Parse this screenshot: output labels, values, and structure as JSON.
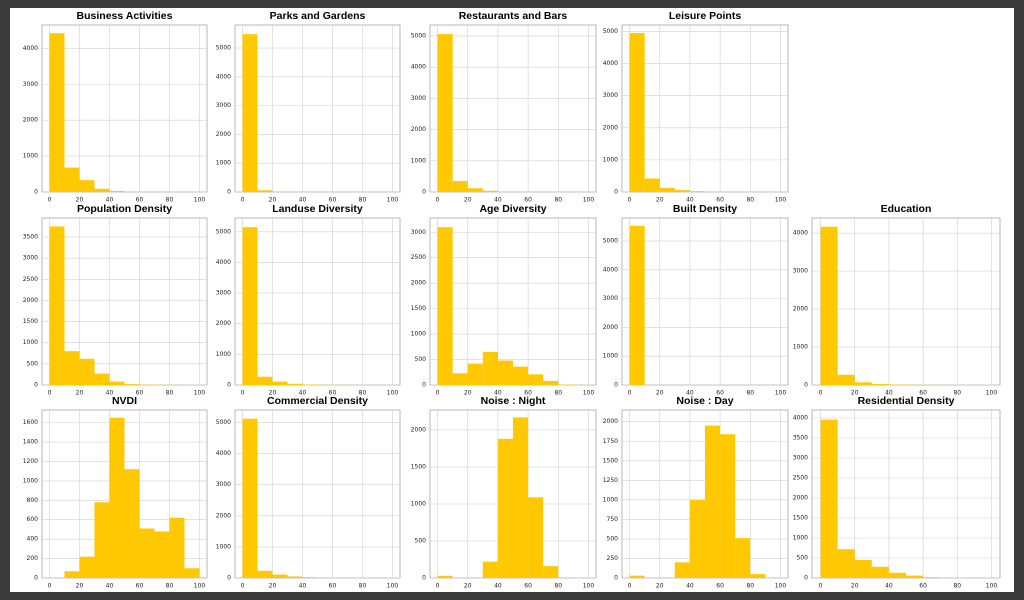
{
  "chart_data": [
    {
      "type": "histogram",
      "title": "Business Activities",
      "bins": [
        0,
        10,
        20,
        30,
        40,
        50,
        60,
        70,
        80,
        90,
        100
      ],
      "values": [
        4420,
        680,
        330,
        90,
        30,
        10,
        5,
        2,
        1,
        1
      ],
      "color": "#ffc800",
      "xlim": [
        -5,
        105
      ],
      "xticks": [
        0,
        20,
        40,
        60,
        80,
        100
      ],
      "ylim": [
        0,
        4650
      ],
      "yticks": [
        0,
        1000,
        2000,
        3000,
        4000
      ],
      "grid": true
    },
    {
      "type": "histogram",
      "title": "Parks and Gardens",
      "bins": [
        0,
        10,
        20,
        30,
        40,
        50,
        60,
        70,
        80,
        90,
        100
      ],
      "values": [
        5480,
        60,
        20,
        10,
        5,
        3,
        2,
        1,
        1,
        1
      ],
      "color": "#ffc800",
      "xlim": [
        -5,
        105
      ],
      "xticks": [
        0,
        20,
        40,
        60,
        80,
        100
      ],
      "ylim": [
        0,
        5800
      ],
      "yticks": [
        0,
        1000,
        2000,
        3000,
        4000,
        5000
      ],
      "grid": true
    },
    {
      "type": "histogram",
      "title": "Restaurants and Bars",
      "bins": [
        0,
        10,
        20,
        30,
        40,
        50,
        60,
        70,
        80,
        90,
        100
      ],
      "values": [
        5060,
        350,
        120,
        40,
        15,
        5,
        3,
        2,
        1,
        1
      ],
      "color": "#ffc800",
      "xlim": [
        -5,
        105
      ],
      "xticks": [
        0,
        20,
        40,
        60,
        80,
        100
      ],
      "ylim": [
        0,
        5350
      ],
      "yticks": [
        0,
        1000,
        2000,
        3000,
        4000,
        5000
      ],
      "grid": true
    },
    {
      "type": "histogram",
      "title": "Leisure Points",
      "bins": [
        0,
        10,
        20,
        30,
        40,
        50,
        60,
        70,
        80,
        90,
        100
      ],
      "values": [
        4950,
        420,
        130,
        60,
        25,
        10,
        5,
        2,
        1,
        1
      ],
      "color": "#ffc800",
      "xlim": [
        -5,
        105
      ],
      "xticks": [
        0,
        20,
        40,
        60,
        80,
        100
      ],
      "ylim": [
        0,
        5200
      ],
      "yticks": [
        0,
        1000,
        2000,
        3000,
        4000,
        5000
      ],
      "grid": true
    },
    {
      "type": "histogram",
      "title": "Population Density",
      "bins": [
        0,
        10,
        20,
        30,
        40,
        50,
        60,
        70,
        80,
        90,
        100
      ],
      "values": [
        3750,
        800,
        620,
        270,
        80,
        20,
        8,
        3,
        2,
        1
      ],
      "color": "#ffc800",
      "xlim": [
        -5,
        105
      ],
      "xticks": [
        0,
        20,
        40,
        60,
        80,
        100
      ],
      "ylim": [
        0,
        3950
      ],
      "yticks": [
        0,
        500,
        1000,
        1500,
        2000,
        2500,
        3000,
        3500
      ],
      "grid": true
    },
    {
      "type": "histogram",
      "title": "Landuse Diversity",
      "bins": [
        0,
        10,
        20,
        30,
        40,
        50,
        60,
        70,
        80,
        90,
        100
      ],
      "values": [
        5150,
        270,
        110,
        40,
        15,
        5,
        3,
        2,
        1,
        1
      ],
      "color": "#ffc800",
      "xlim": [
        -5,
        105
      ],
      "xticks": [
        0,
        20,
        40,
        60,
        80,
        100
      ],
      "ylim": [
        0,
        5450
      ],
      "yticks": [
        0,
        1000,
        2000,
        3000,
        4000,
        5000
      ],
      "grid": true
    },
    {
      "type": "histogram",
      "title": "Age Diversity",
      "bins": [
        0,
        10,
        20,
        30,
        40,
        50,
        60,
        70,
        80,
        90,
        100
      ],
      "values": [
        3100,
        230,
        420,
        650,
        480,
        360,
        210,
        80,
        10,
        2
      ],
      "color": "#ffc800",
      "xlim": [
        -5,
        105
      ],
      "xticks": [
        0,
        20,
        40,
        60,
        80,
        100
      ],
      "ylim": [
        0,
        3280
      ],
      "yticks": [
        0,
        500,
        1000,
        1500,
        2000,
        2500,
        3000
      ],
      "grid": true
    },
    {
      "type": "histogram",
      "title": "Built Density",
      "bins": [
        0,
        10,
        20,
        30,
        40,
        50,
        60,
        70,
        80,
        90,
        100
      ],
      "values": [
        5530,
        0,
        0,
        0,
        0,
        0,
        0,
        0,
        0,
        0
      ],
      "color": "#ffc800",
      "xlim": [
        -5,
        105
      ],
      "xticks": [
        0,
        20,
        40,
        60,
        80,
        100
      ],
      "ylim": [
        0,
        5800
      ],
      "yticks": [
        0,
        1000,
        2000,
        3000,
        4000,
        5000
      ],
      "grid": true
    },
    {
      "type": "histogram",
      "title": "Education",
      "bins": [
        0,
        10,
        20,
        30,
        40,
        50,
        60,
        70,
        80,
        90,
        100
      ],
      "values": [
        4170,
        270,
        70,
        25,
        10,
        5,
        2,
        1,
        1,
        0
      ],
      "color": "#ffc800",
      "xlim": [
        -5,
        105
      ],
      "xticks": [
        0,
        20,
        40,
        60,
        80,
        100
      ],
      "ylim": [
        0,
        4400
      ],
      "yticks": [
        0,
        1000,
        2000,
        3000,
        4000
      ],
      "grid": true
    },
    {
      "type": "histogram",
      "title": "NVDI",
      "bins": [
        0,
        10,
        20,
        30,
        40,
        50,
        60,
        70,
        80,
        90,
        100
      ],
      "values": [
        5,
        70,
        220,
        780,
        1650,
        1120,
        510,
        480,
        620,
        100
      ],
      "color": "#ffc800",
      "xlim": [
        -5,
        105
      ],
      "xticks": [
        0,
        20,
        40,
        60,
        80,
        100
      ],
      "ylim": [
        0,
        1730
      ],
      "yticks": [
        0,
        200,
        400,
        600,
        800,
        1000,
        1200,
        1400,
        1600
      ],
      "grid": true
    },
    {
      "type": "histogram",
      "title": "Commercial Density",
      "bins": [
        0,
        10,
        20,
        30,
        40,
        50,
        60,
        70,
        80,
        90,
        100
      ],
      "values": [
        5120,
        230,
        110,
        50,
        25,
        10,
        5,
        2,
        1,
        1
      ],
      "color": "#ffc800",
      "xlim": [
        -5,
        105
      ],
      "xticks": [
        0,
        20,
        40,
        60,
        80,
        100
      ],
      "ylim": [
        0,
        5400
      ],
      "yticks": [
        0,
        1000,
        2000,
        3000,
        4000,
        5000
      ],
      "grid": true
    },
    {
      "type": "histogram",
      "title": "Noise : Night",
      "bins": [
        0,
        10,
        20,
        30,
        40,
        50,
        60,
        70,
        80,
        90,
        100
      ],
      "values": [
        30,
        5,
        0,
        220,
        1880,
        2170,
        1090,
        160,
        5,
        0
      ],
      "color": "#ffc800",
      "xlim": [
        -5,
        105
      ],
      "xticks": [
        0,
        20,
        40,
        60,
        80,
        100
      ],
      "ylim": [
        0,
        2270
      ],
      "yticks": [
        0,
        500,
        1000,
        1500,
        2000
      ],
      "grid": true
    },
    {
      "type": "histogram",
      "title": "Noise : Day",
      "bins": [
        0,
        10,
        20,
        30,
        40,
        50,
        60,
        70,
        80,
        90,
        100
      ],
      "values": [
        30,
        5,
        0,
        200,
        1000,
        1950,
        1840,
        510,
        50,
        5
      ],
      "color": "#ffc800",
      "xlim": [
        -5,
        105
      ],
      "xticks": [
        0,
        20,
        40,
        60,
        80,
        100
      ],
      "ylim": [
        0,
        2150
      ],
      "yticks": [
        0,
        250,
        500,
        750,
        1000,
        1250,
        1500,
        1750,
        2000
      ],
      "grid": true
    },
    {
      "type": "histogram",
      "title": "Residential Density",
      "bins": [
        0,
        10,
        20,
        30,
        40,
        50,
        60,
        70,
        80,
        90,
        100
      ],
      "values": [
        3960,
        720,
        450,
        280,
        130,
        60,
        20,
        8,
        3,
        1
      ],
      "color": "#ffc800",
      "xlim": [
        -5,
        105
      ],
      "xticks": [
        0,
        20,
        40,
        60,
        80,
        100
      ],
      "ylim": [
        0,
        4200
      ],
      "yticks": [
        0,
        500,
        1000,
        1500,
        2000,
        2500,
        3000,
        3500,
        4000
      ],
      "grid": true
    }
  ]
}
